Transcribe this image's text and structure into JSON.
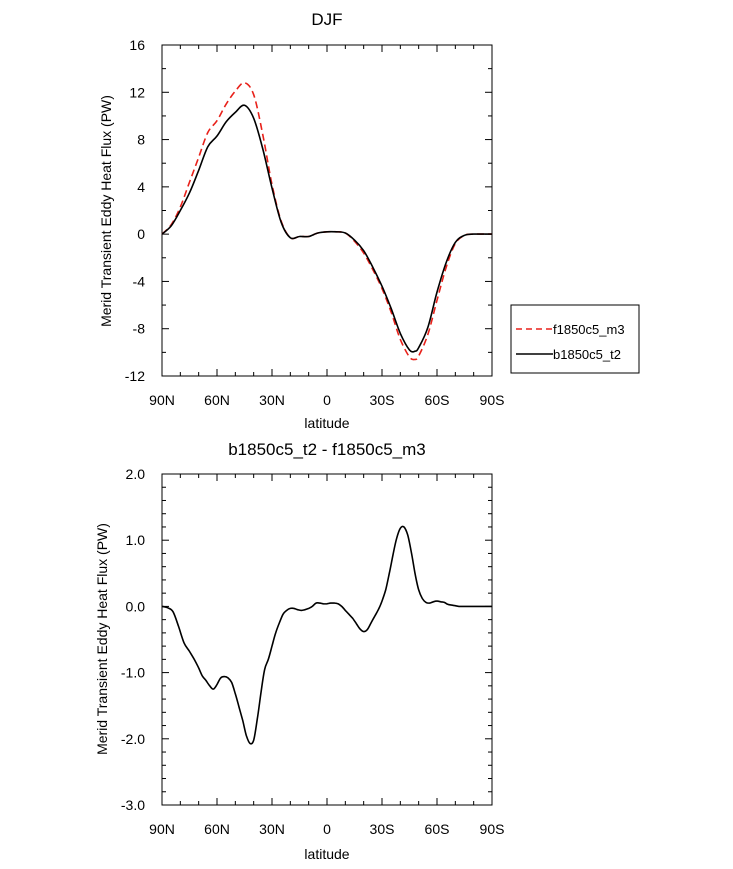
{
  "chart_data": [
    {
      "type": "line",
      "title": "DJF",
      "xlabel": "latitude",
      "ylabel": "Merid Transient Eddy Heat Flux (PW)",
      "xlim": [
        90,
        -90
      ],
      "ylim": [
        -12,
        16
      ],
      "x_ticks": [
        90,
        60,
        30,
        0,
        -30,
        -60,
        -90
      ],
      "x_tick_labels": [
        "90N",
        "60N",
        "30N",
        "0",
        "30S",
        "60S",
        "90S"
      ],
      "y_ticks": [
        -12,
        -8,
        -4,
        0,
        4,
        8,
        12,
        16
      ],
      "y_tick_labels": [
        "-12",
        "-8",
        "-4",
        "0",
        "4",
        "8",
        "12",
        "16"
      ],
      "legend_position": "outside-right",
      "series": [
        {
          "name": "f1850c5_m3",
          "color": "#e8211a",
          "style": "dashed",
          "x": [
            90,
            85,
            80,
            75,
            70,
            65,
            60,
            55,
            50,
            45,
            40,
            35,
            30,
            25,
            20,
            15,
            10,
            5,
            0,
            -5,
            -10,
            -15,
            -20,
            -25,
            -30,
            -35,
            -40,
            -45,
            -48,
            -50,
            -55,
            -60,
            -65,
            -70,
            -75,
            -80,
            -85,
            -90
          ],
          "y": [
            0,
            0.8,
            2.3,
            4.4,
            6.5,
            8.6,
            9.6,
            11.0,
            12.1,
            12.8,
            11.8,
            8.4,
            4.2,
            1.1,
            -0.3,
            -0.2,
            -0.2,
            0.1,
            0.2,
            0.2,
            0.1,
            -0.6,
            -1.6,
            -3.0,
            -4.6,
            -6.6,
            -8.9,
            -10.4,
            -10.6,
            -10.3,
            -8.5,
            -5.6,
            -2.8,
            -0.8,
            -0.1,
            0,
            0,
            0
          ]
        },
        {
          "name": "b1850c5_t2",
          "color": "#000000",
          "style": "solid",
          "x": [
            90,
            85,
            80,
            75,
            70,
            65,
            60,
            55,
            50,
            45,
            40,
            35,
            30,
            25,
            20,
            15,
            10,
            5,
            0,
            -5,
            -10,
            -15,
            -20,
            -25,
            -30,
            -35,
            -40,
            -45,
            -48,
            -50,
            -55,
            -60,
            -65,
            -70,
            -75,
            -80,
            -85,
            -90
          ],
          "y": [
            0,
            0.7,
            2.0,
            3.5,
            5.4,
            7.4,
            8.3,
            9.5,
            10.3,
            10.9,
            9.8,
            7.2,
            3.9,
            1.0,
            -0.3,
            -0.2,
            -0.2,
            0.1,
            0.2,
            0.2,
            0.1,
            -0.5,
            -1.4,
            -2.8,
            -4.4,
            -6.3,
            -8.4,
            -9.8,
            -9.9,
            -9.6,
            -7.9,
            -4.9,
            -2.4,
            -0.7,
            -0.1,
            0,
            0,
            0
          ]
        }
      ]
    },
    {
      "type": "line",
      "title": "b1850c5_t2 - f1850c5_m3",
      "xlabel": "latitude",
      "ylabel": "Merid Transient Eddy Heat Flux (PW)",
      "xlim": [
        90,
        -90
      ],
      "ylim": [
        -3,
        2
      ],
      "x_ticks": [
        90,
        60,
        30,
        0,
        -30,
        -60,
        -90
      ],
      "x_tick_labels": [
        "90N",
        "60N",
        "30N",
        "0",
        "30S",
        "60S",
        "90S"
      ],
      "y_ticks": [
        -3,
        -2,
        -1,
        0,
        1,
        2
      ],
      "y_tick_labels": [
        "-3.0",
        "-2.0",
        "-1.0",
        "0.0",
        "1.0",
        "2.0"
      ],
      "series": [
        {
          "name": "b1850c5_t2 - f1850c5_m3",
          "color": "#000000",
          "style": "solid",
          "x": [
            90,
            87,
            84,
            81,
            78,
            75,
            72,
            70,
            68,
            66,
            64,
            62,
            60,
            58,
            56,
            54,
            52,
            50,
            48,
            46,
            44,
            42,
            40,
            38,
            36,
            34,
            32,
            30,
            28,
            26,
            24,
            22,
            20,
            18,
            16,
            14,
            12,
            10,
            8,
            6,
            4,
            2,
            0,
            -2,
            -4,
            -6,
            -8,
            -10,
            -12,
            -14,
            -16,
            -18,
            -20,
            -22,
            -24,
            -26,
            -28,
            -30,
            -32,
            -34,
            -36,
            -38,
            -40,
            -42,
            -44,
            -46,
            -48,
            -50,
            -52,
            -54,
            -56,
            -58,
            -60,
            -62,
            -64,
            -66,
            -68,
            -70,
            -72,
            -74,
            -76,
            -78,
            -80,
            -82,
            -84,
            -86,
            -88,
            -90
          ],
          "y": [
            0,
            -0.02,
            -0.08,
            -0.3,
            -0.55,
            -0.68,
            -0.82,
            -0.93,
            -1.05,
            -1.12,
            -1.2,
            -1.25,
            -1.18,
            -1.08,
            -1.06,
            -1.08,
            -1.15,
            -1.32,
            -1.52,
            -1.72,
            -1.95,
            -2.07,
            -2.02,
            -1.7,
            -1.3,
            -0.95,
            -0.8,
            -0.6,
            -0.4,
            -0.25,
            -0.12,
            -0.06,
            -0.03,
            -0.03,
            -0.05,
            -0.06,
            -0.05,
            -0.03,
            0,
            0.05,
            0.05,
            0.04,
            0.04,
            0.05,
            0.05,
            0.04,
            0,
            -0.06,
            -0.12,
            -0.18,
            -0.26,
            -0.34,
            -0.38,
            -0.35,
            -0.25,
            -0.15,
            -0.05,
            0.08,
            0.25,
            0.5,
            0.78,
            1.03,
            1.18,
            1.2,
            1.08,
            0.82,
            0.5,
            0.25,
            0.12,
            0.06,
            0.05,
            0.07,
            0.08,
            0.07,
            0.06,
            0.03,
            0.02,
            0.01,
            0,
            0,
            0,
            0,
            0,
            0,
            0,
            0,
            0,
            0
          ]
        }
      ]
    }
  ]
}
